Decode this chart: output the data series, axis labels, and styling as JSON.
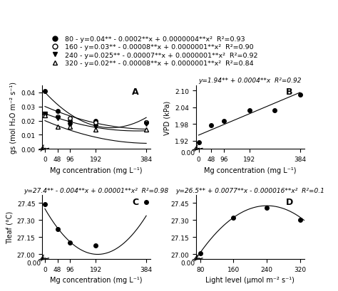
{
  "legend_entries": [
    {
      "label": "80 - y=0.04** - 0.0002**x + 0.0000004**x²  R²=0.93",
      "marker": "o",
      "filled": true
    },
    {
      "label": "160 - y=0.03** - 0.00008**x + 0.0000001**x²  R²=0.90",
      "marker": "o",
      "filled": false
    },
    {
      "label": "240 - y=0.025** - 0.00007**x + 0.0000001**x²  R²=0.92",
      "marker": "v",
      "filled": true
    },
    {
      "label": "320 - y=0.02** - 0.00008**x + 0.0000001**x²  R²=0.84",
      "marker": "^",
      "filled": false
    }
  ],
  "panelA": {
    "label": "A",
    "xlabel": "Mg concentration (mg L⁻¹)",
    "ylabel": "gs (mol H₂O m⁻² s⁻¹)",
    "xticks": [
      0,
      48,
      96,
      192,
      384
    ],
    "ylim": [
      0.0,
      0.045
    ],
    "yticks": [
      0.0,
      0.01,
      0.02,
      0.03,
      0.04
    ],
    "series": [
      {
        "x": [
          0,
          48,
          96,
          192,
          384
        ],
        "y": [
          0.041,
          0.027,
          0.02,
          0.02,
          0.019
        ],
        "coefs": [
          0.04,
          -0.0002,
          4e-07
        ],
        "marker": "o",
        "filled": true
      },
      {
        "x": [
          0,
          48,
          96,
          192,
          384
        ],
        "y": [
          0.025,
          0.023,
          0.022,
          0.019,
          0.019
        ],
        "coefs": [
          0.03,
          -8e-05,
          1e-07
        ],
        "marker": "o",
        "filled": false
      },
      {
        "x": [
          0,
          48,
          96,
          192,
          384
        ],
        "y": [
          0.025,
          0.022,
          0.017,
          0.016,
          0.018
        ],
        "coefs": [
          0.025,
          -7e-05,
          1e-07
        ],
        "marker": "v",
        "filled": true
      },
      {
        "x": [
          0,
          48,
          96,
          192,
          384
        ],
        "y": [
          0.024,
          0.016,
          0.016,
          0.014,
          0.014
        ],
        "coefs": [
          0.02,
          -8e-05,
          1e-07
        ],
        "marker": "^",
        "filled": false
      }
    ]
  },
  "panelB": {
    "label": "B",
    "xlabel": "Mg concentration (mg L⁻¹)",
    "ylabel": "VPD (kPa)",
    "equation": "y=1.94** + 0.0004**x  R²=0.92",
    "xticks": [
      0,
      48,
      96,
      192,
      384
    ],
    "ylim": [
      1.89,
      2.12
    ],
    "yticks": [
      1.92,
      1.98,
      2.04,
      2.1
    ],
    "x": [
      0,
      48,
      96,
      192,
      288,
      384
    ],
    "y": [
      1.915,
      1.975,
      1.99,
      2.03,
      2.03,
      2.085
    ],
    "coefs": [
      1.94,
      0.0004
    ]
  },
  "panelC": {
    "label": "C",
    "xlabel": "Mg concentration (mg L⁻¹)",
    "ylabel": "Tleaf (°C)",
    "equation": "y=27.4** - 0.004**x + 0.00001**x²  R²=0.98",
    "xticks": [
      0,
      48,
      96,
      192,
      384
    ],
    "ylim": [
      26.96,
      27.52
    ],
    "yticks": [
      27.0,
      27.15,
      27.3,
      27.45
    ],
    "x": [
      0,
      48,
      96,
      192,
      384
    ],
    "y": [
      27.44,
      27.22,
      27.1,
      27.08,
      27.46
    ],
    "coefs": [
      27.4,
      -0.004,
      1e-05
    ]
  },
  "panelD": {
    "label": "D",
    "xlabel": "Light level (μmol m⁻² s⁻¹)",
    "ylabel": "",
    "equation": "y=26.5** + 0.0077**x - 0.000016**x²  R²=0.1",
    "xticks": [
      80,
      160,
      240,
      320
    ],
    "ylim": [
      26.96,
      27.52
    ],
    "yticks": [
      27.0,
      27.15,
      27.3,
      27.45
    ],
    "x": [
      80,
      160,
      240,
      320
    ],
    "y": [
      27.01,
      27.32,
      27.41,
      27.3
    ],
    "coefs": [
      26.5,
      0.0077,
      -1.6e-05
    ]
  }
}
